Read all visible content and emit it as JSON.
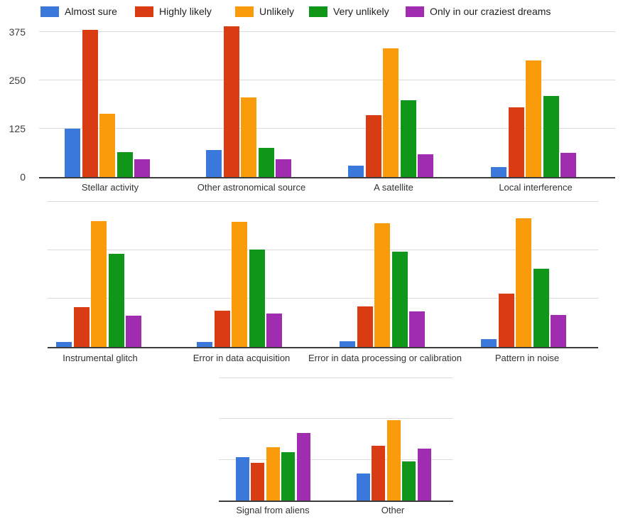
{
  "figure": {
    "background": "#ffffff",
    "title": ""
  },
  "legend": {
    "position": "top",
    "items": [
      {
        "label": "Almost sure",
        "color": "#3B78DB"
      },
      {
        "label": "Highly likely",
        "color": "#D93B13"
      },
      {
        "label": "Unlikely",
        "color": "#F99B0B"
      },
      {
        "label": "Very unlikely",
        "color": "#109618"
      },
      {
        "label": "Only in our craziest dreams",
        "color": "#A02CB0"
      }
    ]
  },
  "chart_data": {
    "type": "bar",
    "title": "",
    "xlabel": "",
    "ylabel": "",
    "grid": true,
    "legend_position": "top",
    "series": [
      "Almost sure",
      "Highly likely",
      "Unlikely",
      "Very unlikely",
      "Only in our craziest dreams"
    ],
    "colors": [
      "#3B78DB",
      "#D93B13",
      "#F99B0B",
      "#109618",
      "#A02CB0"
    ],
    "panels": [
      {
        "name": "row-1",
        "y_axis": {
          "tick_labels": [
            "0",
            "125",
            "250",
            "375"
          ],
          "tick_values": [
            0,
            125,
            250,
            375
          ]
        },
        "gridline_values": [
          125,
          250,
          375
        ],
        "ylim": [
          0,
          440
        ],
        "categories": [
          "Stellar activity",
          "Other astronomical source",
          "A satellite",
          "Local interference"
        ],
        "series_values": [
          [
            125,
            380,
            163,
            64,
            46
          ],
          [
            70,
            390,
            205,
            76,
            46
          ],
          [
            30,
            160,
            332,
            199,
            59
          ],
          [
            26,
            181,
            302,
            210,
            63
          ]
        ]
      },
      {
        "name": "row-2",
        "y_axis": {
          "tick_labels": [],
          "tick_values": []
        },
        "gridline_values": [
          125,
          250,
          375
        ],
        "ylim": [
          0,
          382
        ],
        "categories": [
          "Instrumental glitch",
          "Error in data acquisition",
          "Error in data processing or calibration",
          "Pattern in noise"
        ],
        "series_values": [
          [
            12,
            103,
            325,
            240,
            80
          ],
          [
            13,
            94,
            323,
            252,
            86
          ],
          [
            15,
            104,
            320,
            246,
            91
          ],
          [
            21,
            138,
            333,
            203,
            82
          ]
        ]
      },
      {
        "name": "row-3",
        "y_axis": {
          "tick_labels": [],
          "tick_values": []
        },
        "gridline_values": [
          125,
          250,
          375
        ],
        "ylim": [
          0,
          382
        ],
        "categories": [
          "Signal from aliens",
          "Other"
        ],
        "series_values": [
          [
            132,
            115,
            163,
            148,
            206
          ],
          [
            82,
            167,
            245,
            120,
            159
          ]
        ]
      }
    ]
  }
}
